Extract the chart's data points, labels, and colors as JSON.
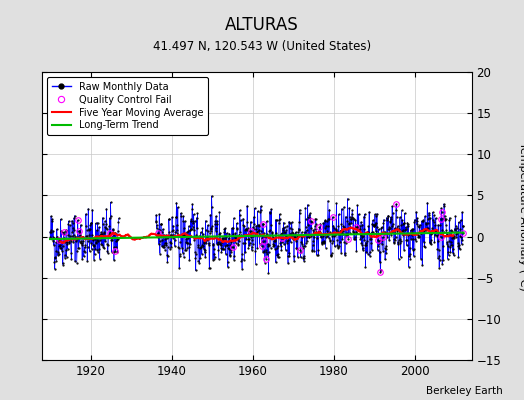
{
  "title": "ALTURAS",
  "subtitle": "41.497 N, 120.543 W (United States)",
  "ylabel": "Temperature Anomaly (°C)",
  "credit": "Berkeley Earth",
  "xlim": [
    1908,
    2014
  ],
  "ylim": [
    -15,
    20
  ],
  "yticks": [
    -15,
    -10,
    -5,
    0,
    5,
    10,
    15,
    20
  ],
  "xticks": [
    1920,
    1940,
    1960,
    1980,
    2000
  ],
  "x_start": 1910,
  "x_end": 2012,
  "n_months": 1224,
  "seed": 42,
  "raw_color": "#0000ff",
  "qc_color": "#ff00ff",
  "moving_avg_color": "#ff0000",
  "trend_color": "#00bb00",
  "bg_color": "#e0e0e0",
  "plot_bg_color": "#ffffff",
  "figwidth": 5.24,
  "figheight": 4.0,
  "dpi": 100
}
